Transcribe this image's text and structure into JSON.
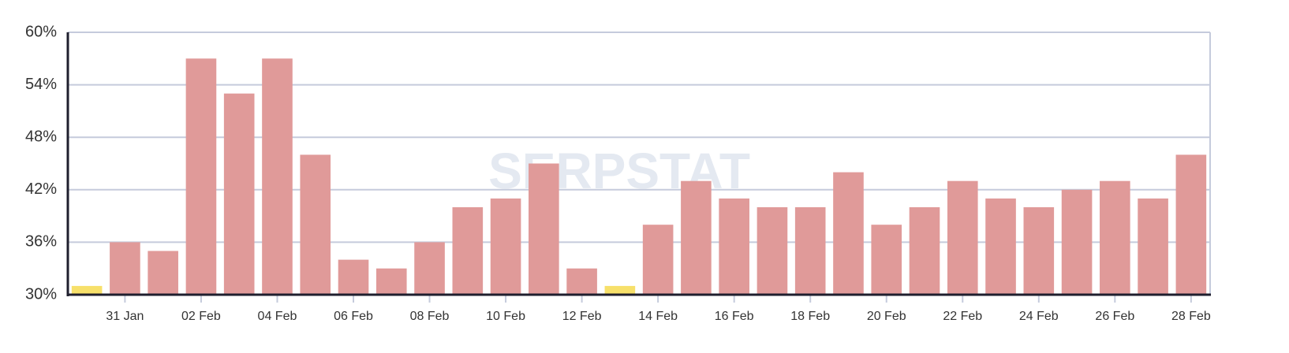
{
  "chart_data": {
    "type": "bar",
    "watermark": "SERPSTAT",
    "categories": [
      null,
      "31 Jan",
      null,
      "02 Feb",
      null,
      "04 Feb",
      null,
      "06 Feb",
      null,
      "08 Feb",
      null,
      "10 Feb",
      null,
      "12 Feb",
      null,
      "14 Feb",
      null,
      "16 Feb",
      null,
      "18 Feb",
      null,
      "20 Feb",
      null,
      "22 Feb",
      null,
      "24 Feb",
      null,
      "26 Feb",
      null,
      "28 Feb"
    ],
    "values": [
      31,
      36,
      35,
      57,
      53,
      57,
      46,
      34,
      33,
      36,
      40,
      41,
      45,
      33,
      31,
      38,
      43,
      41,
      40,
      40,
      44,
      38,
      40,
      43,
      41,
      40,
      42,
      43,
      41,
      46
    ],
    "colors": [
      "#f7e06a",
      "#e09a99",
      "#e09a99",
      "#e09a99",
      "#e09a99",
      "#e09a99",
      "#e09a99",
      "#e09a99",
      "#e09a99",
      "#e09a99",
      "#e09a99",
      "#e09a99",
      "#e09a99",
      "#e09a99",
      "#f7e06a",
      "#e09a99",
      "#e09a99",
      "#e09a99",
      "#e09a99",
      "#e09a99",
      "#e09a99",
      "#e09a99",
      "#e09a99",
      "#e09a99",
      "#e09a99",
      "#e09a99",
      "#e09a99",
      "#e09a99",
      "#e09a99",
      "#e09a99"
    ],
    "ylim": [
      30,
      60
    ],
    "yticks": [
      {
        "value": 30,
        "label": "30%"
      },
      {
        "value": 36,
        "label": "36%"
      },
      {
        "value": 42,
        "label": "42%"
      },
      {
        "value": 48,
        "label": "48%"
      },
      {
        "value": 54,
        "label": "54%"
      },
      {
        "value": 60,
        "label": "60%"
      }
    ],
    "grid": true
  }
}
